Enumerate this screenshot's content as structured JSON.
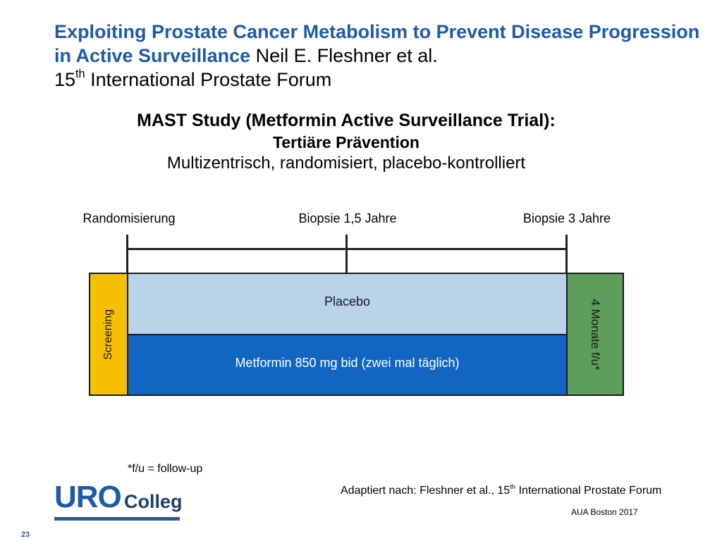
{
  "header": {
    "title_bold": "Exploiting Prostate Cancer Metabolism to Prevent Disease Progression in Active Surveillance",
    "authors": "Neil E. Fleshner et al.",
    "forum_num": "15",
    "forum_sup": "th",
    "forum_rest": "International Prostate Forum"
  },
  "study": {
    "line1": "MAST Study (Metformin Active Surveillance Trial):",
    "line2": "Tertiäre Prävention",
    "line3": "Multizentrisch, randomisiert, placebo-kontrolliert"
  },
  "timeline": {
    "randomization": "Randomisierung",
    "biopsy_1": "Biopsie 1,5 Jahre",
    "biopsy_2": "Biopsie 3 Jahre"
  },
  "diagram": {
    "screening": "Screening",
    "placebo": "Placebo",
    "metformin": "Metformin 850 mg bid (zwei mal täglich)",
    "followup": "4 Monate f/u*",
    "colors": {
      "screening": "#f5c000",
      "placebo": "#b8d3ea",
      "metformin": "#1266c2",
      "followup": "#5d9e5a"
    }
  },
  "footer": {
    "footnote": "*f/u = follow-up",
    "source_prefix": "Adaptiert nach: Fleshner et al., 15",
    "source_sup": "th",
    "source_rest": "International Prostate Forum",
    "conference": "AUA Boston 2017",
    "page_number": "23"
  },
  "logo": {
    "uro": "URO",
    "colleg": "Colleg"
  }
}
